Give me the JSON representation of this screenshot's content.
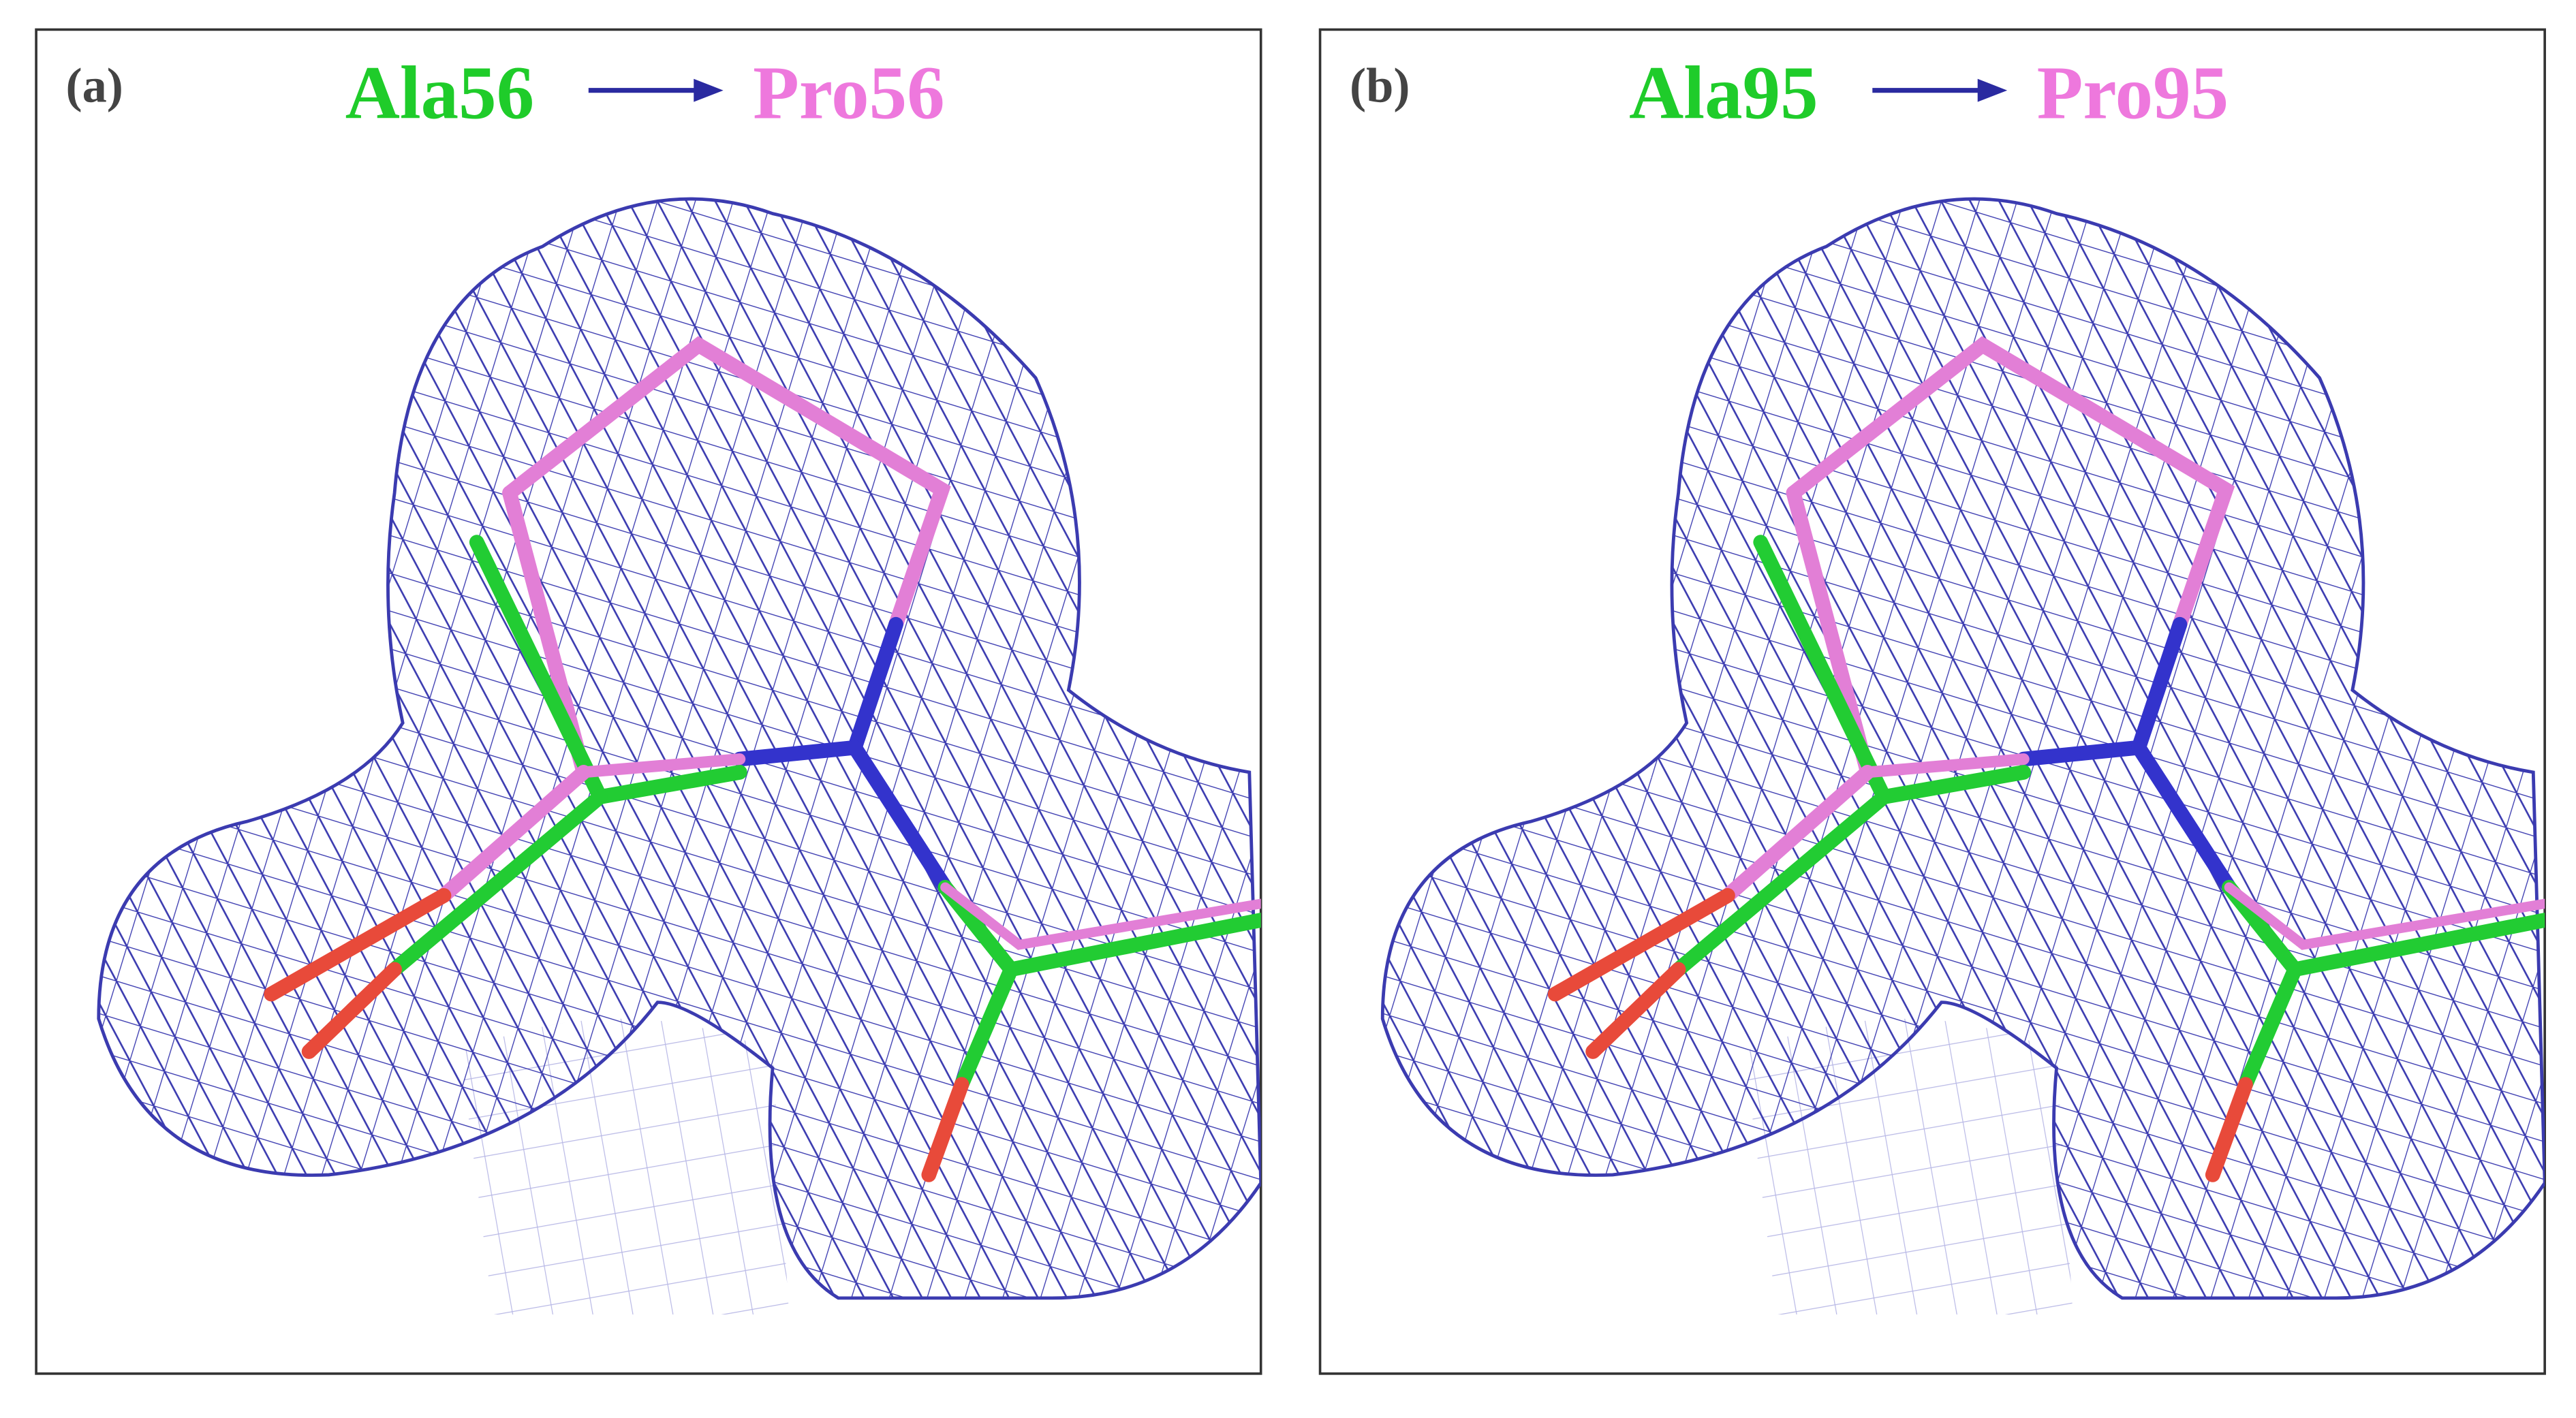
{
  "panels": [
    {
      "label": "(a)",
      "from": "Ala56",
      "to": "Pro56"
    },
    {
      "label": "(b)",
      "from": "Ala95",
      "to": "Pro95"
    }
  ]
}
